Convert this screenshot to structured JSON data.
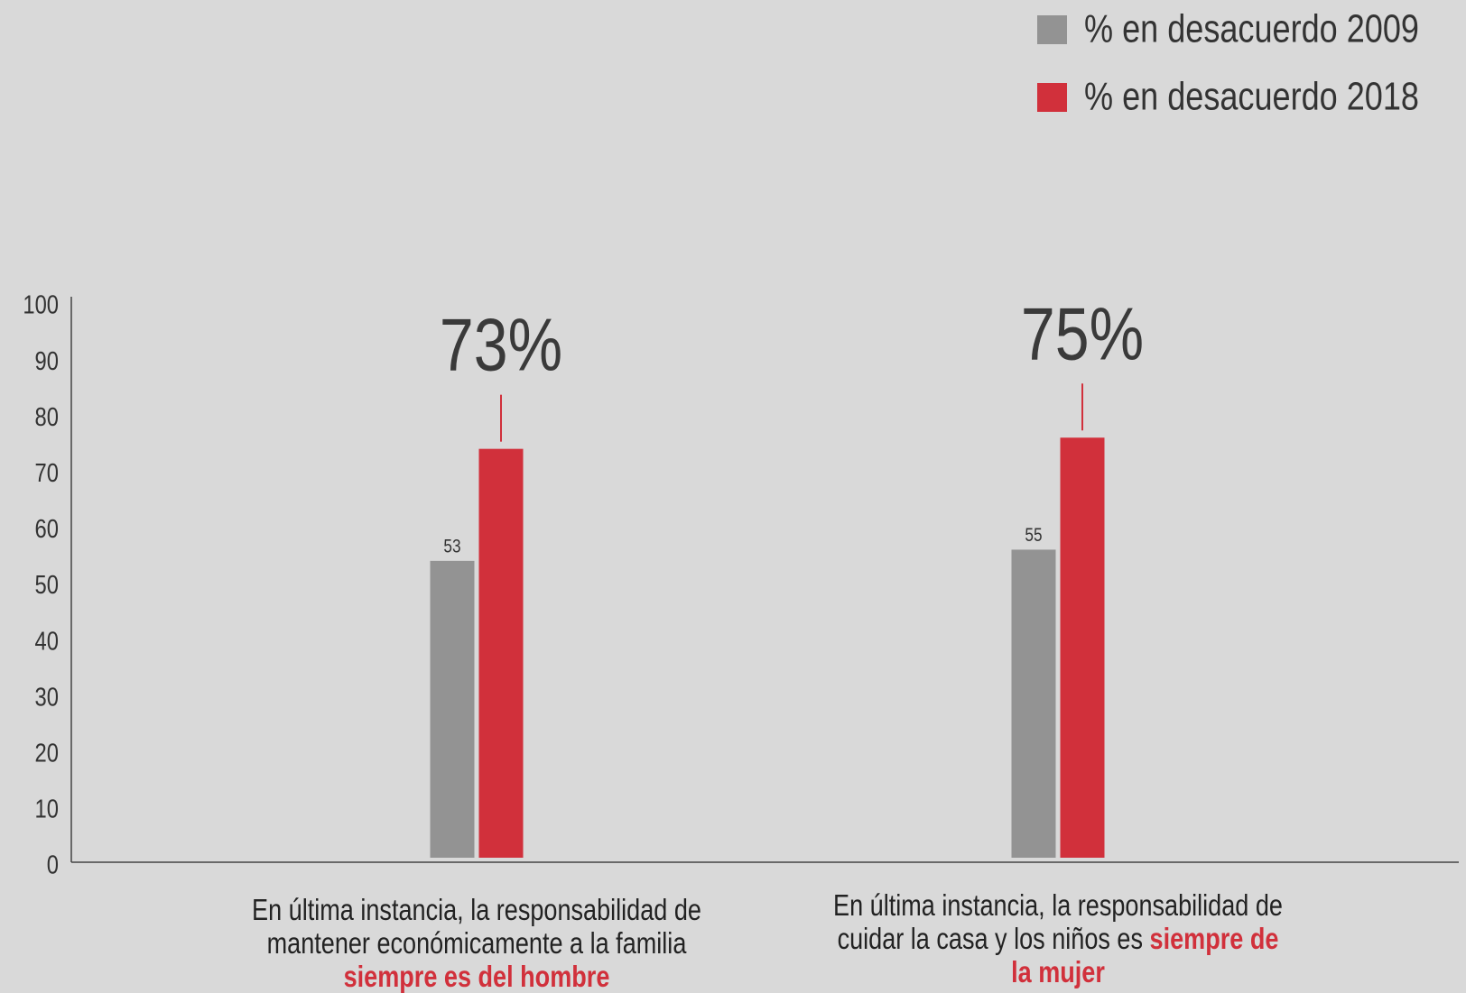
{
  "chart_data": {
    "type": "bar",
    "categories": [
      "En última instancia, la responsabilidad de mantener económicamente a la familia",
      "En última instancia, la responsabili­dad de cuidar la casa y los niños es"
    ],
    "category_emphasis": [
      "siempre es del hombre",
      "siempre de la mujer"
    ],
    "series": [
      {
        "name": "% en desacuerdo 2009",
        "color": "#939393",
        "values": [
          53,
          55
        ]
      },
      {
        "name": "% en desacuerdo 2018",
        "color": "#d1303b",
        "values": [
          73,
          75
        ],
        "value_labels": [
          "73%",
          "75%"
        ]
      }
    ],
    "ylim": [
      0,
      100
    ],
    "yticks": [
      0,
      10,
      20,
      30,
      40,
      50,
      60,
      70,
      80,
      90,
      100
    ],
    "grid": false,
    "legend": "top-right"
  }
}
